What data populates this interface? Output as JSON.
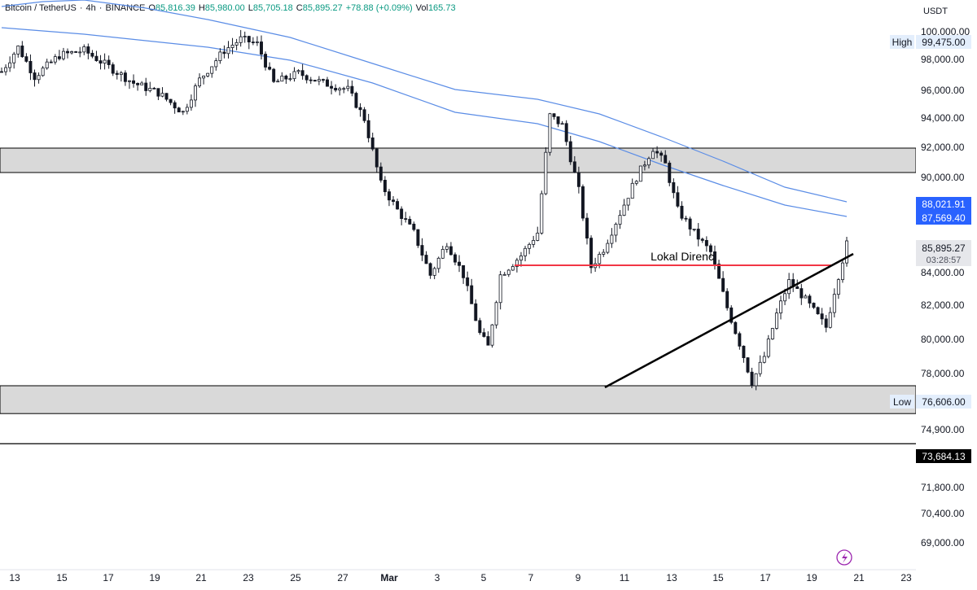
{
  "header": {
    "symbol": "Bitcoin / TetherUS",
    "interval": "4h",
    "exchange": "BINANCE",
    "open_label": "O",
    "open": "85,816.39",
    "high_label": "H",
    "high": "85,980.00",
    "low_label": "L",
    "low": "85,705.18",
    "close_label": "C",
    "close": "85,895.27",
    "change": "+78.88 (+0.09%)",
    "vol_label": "Vol",
    "volume": "165.73"
  },
  "currency": "USDT",
  "colors": {
    "up": "#089981",
    "down": "#131722",
    "candle": "#131722",
    "ma": "#5b8de6",
    "resistance": "#f23645",
    "trend": "#000000",
    "zone_fill": "#d9d9d9",
    "axis_text": "#131722",
    "price_tag": "#2962ff"
  },
  "chart_data": {
    "type": "candlestick",
    "x_ticks": [
      "13",
      "15",
      "17",
      "19",
      "21",
      "23",
      "25",
      "27",
      "Mar",
      "3",
      "5",
      "7",
      "9",
      "11",
      "13",
      "15",
      "17",
      "19",
      "21",
      "23"
    ],
    "y_ticks": [
      "100,000.00",
      "98,000.00",
      "96,000.00",
      "94,000.00",
      "92,000.00",
      "90,000.00",
      "84,000.00",
      "82,000.00",
      "80,000.00",
      "78,000.00",
      "74,900.00",
      "71,800.00",
      "70,400.00",
      "69,000.00"
    ],
    "price_labels": [
      {
        "id": "high",
        "tag": "High",
        "value": "99,475.00",
        "price": 99475,
        "style": "tag"
      },
      {
        "id": "ma1",
        "value": "88,021.91",
        "price": 88022,
        "style": "blue"
      },
      {
        "id": "ma2",
        "value": "87,569.40",
        "price": 87569,
        "style": "blue"
      },
      {
        "id": "last",
        "value": "85,895.27",
        "price": 85895,
        "countdown": "03:28:57",
        "style": "last"
      },
      {
        "id": "low",
        "tag": "Low",
        "value": "76,606.00",
        "price": 76606,
        "style": "tag"
      },
      {
        "id": "level",
        "value": "73,684.13",
        "price": 73684,
        "style": "black"
      }
    ],
    "zones": [
      {
        "from": 90300,
        "to": 91800
      },
      {
        "from": 75500,
        "to": 77200
      }
    ],
    "horizontal_lines": [
      {
        "price": 73684,
        "color": "#000000"
      }
    ],
    "resistance": {
      "label": "Lokal Direnc",
      "price": 84600,
      "from_date": "Mar 6",
      "to_date": "Mar 20"
    },
    "trendline": {
      "from": {
        "date": "Mar 10",
        "price": 77100
      },
      "to": {
        "date": "Mar 21",
        "price": 85300
      }
    },
    "moving_averages": [
      {
        "points": [
          [
            0,
            100500
          ],
          [
            10,
            100800
          ],
          [
            20,
            100900
          ],
          [
            35,
            100400
          ],
          [
            50,
            99700
          ],
          [
            70,
            98600
          ],
          [
            90,
            97000
          ],
          [
            110,
            95400
          ],
          [
            130,
            94800
          ],
          [
            145,
            93900
          ],
          [
            160,
            92500
          ],
          [
            175,
            91000
          ],
          [
            190,
            89400
          ],
          [
            205,
            88500
          ]
        ]
      },
      {
        "points": [
          [
            0,
            99200
          ],
          [
            10,
            99000
          ],
          [
            20,
            98800
          ],
          [
            35,
            98400
          ],
          [
            50,
            98000
          ],
          [
            70,
            97200
          ],
          [
            90,
            95800
          ],
          [
            110,
            94000
          ],
          [
            130,
            93300
          ],
          [
            145,
            92200
          ],
          [
            160,
            90800
          ],
          [
            175,
            89500
          ],
          [
            190,
            88300
          ],
          [
            205,
            87600
          ]
        ]
      }
    ]
  }
}
